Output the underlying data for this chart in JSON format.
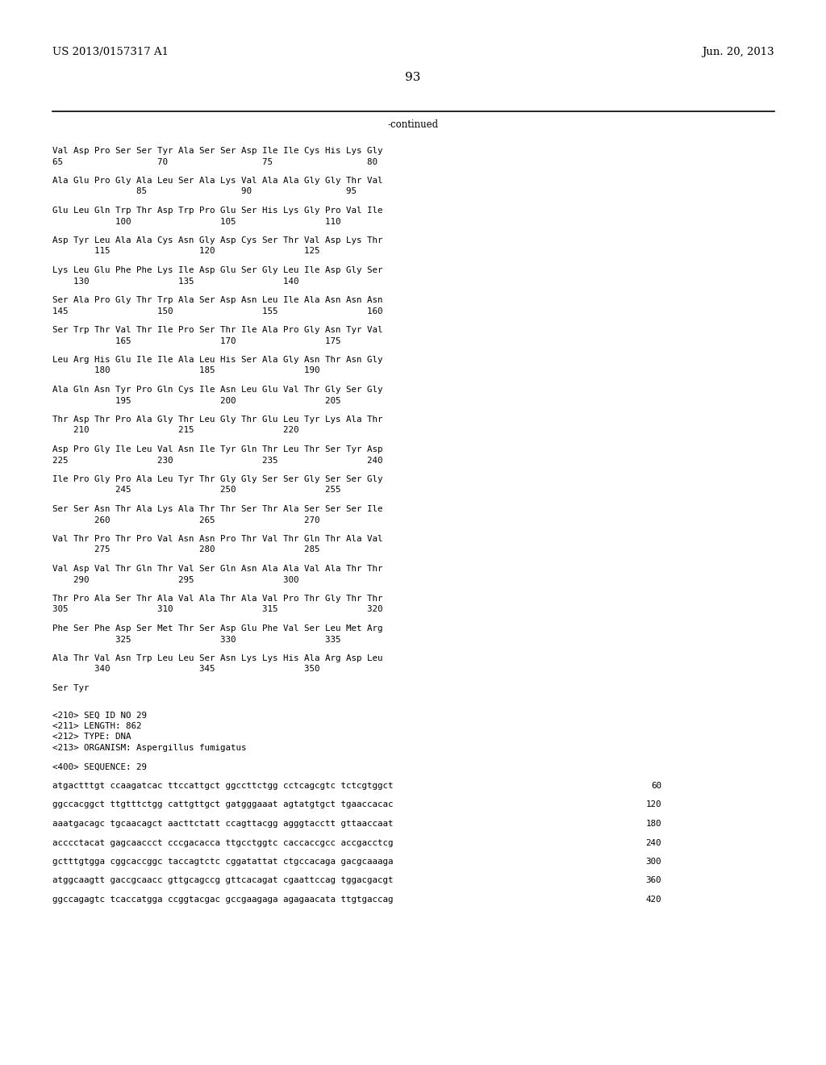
{
  "patent_number": "US 2013/0157317 A1",
  "date": "Jun. 20, 2013",
  "page_number": "93",
  "continued_label": "-continued",
  "bg_color": "#ffffff",
  "text_color": "#000000",
  "seq_lines": [
    "Val Asp Pro Ser Ser Tyr Ala Ser Ser Asp Ile Ile Cys His Lys Gly",
    "65                  70                  75                  80",
    "",
    "Ala Glu Pro Gly Ala Leu Ser Ala Lys Val Ala Ala Gly Gly Thr Val",
    "                85                  90                  95",
    "",
    "Glu Leu Gln Trp Thr Asp Trp Pro Glu Ser His Lys Gly Pro Val Ile",
    "            100                 105                 110",
    "",
    "Asp Tyr Leu Ala Ala Cys Asn Gly Asp Cys Ser Thr Val Asp Lys Thr",
    "        115                 120                 125",
    "",
    "Lys Leu Glu Phe Phe Lys Ile Asp Glu Ser Gly Leu Ile Asp Gly Ser",
    "    130                 135                 140",
    "",
    "Ser Ala Pro Gly Thr Trp Ala Ser Asp Asn Leu Ile Ala Asn Asn Asn",
    "145                 150                 155                 160",
    "",
    "Ser Trp Thr Val Thr Ile Pro Ser Thr Ile Ala Pro Gly Asn Tyr Val",
    "            165                 170                 175",
    "",
    "Leu Arg His Glu Ile Ile Ala Leu His Ser Ala Gly Asn Thr Asn Gly",
    "        180                 185                 190",
    "",
    "Ala Gln Asn Tyr Pro Gln Cys Ile Asn Leu Glu Val Thr Gly Ser Gly",
    "            195                 200                 205",
    "",
    "Thr Asp Thr Pro Ala Gly Thr Leu Gly Thr Glu Leu Tyr Lys Ala Thr",
    "    210                 215                 220",
    "",
    "Asp Pro Gly Ile Leu Val Asn Ile Tyr Gln Thr Leu Thr Ser Tyr Asp",
    "225                 230                 235                 240",
    "",
    "Ile Pro Gly Pro Ala Leu Tyr Thr Gly Gly Ser Ser Gly Ser Ser Gly",
    "            245                 250                 255",
    "",
    "Ser Ser Asn Thr Ala Lys Ala Thr Thr Ser Thr Ala Ser Ser Ser Ile",
    "        260                 265                 270",
    "",
    "Val Thr Pro Thr Pro Val Asn Asn Pro Thr Val Thr Gln Thr Ala Val",
    "        275                 280                 285",
    "",
    "Val Asp Val Thr Gln Thr Val Ser Gln Asn Ala Ala Val Ala Thr Thr",
    "    290                 295                 300",
    "",
    "Thr Pro Ala Ser Thr Ala Val Ala Thr Ala Val Pro Thr Gly Thr Thr",
    "305                 310                 315                 320",
    "",
    "Phe Ser Phe Asp Ser Met Thr Ser Asp Glu Phe Val Ser Leu Met Arg",
    "            325                 330                 335",
    "",
    "Ala Thr Val Asn Trp Leu Leu Ser Asn Lys Lys His Ala Arg Asp Leu",
    "        340                 345                 350",
    "",
    "Ser Tyr"
  ],
  "meta_lines": [
    "<210> SEQ ID NO 29",
    "<211> LENGTH: 862",
    "<212> TYPE: DNA",
    "<213> ORGANISM: Aspergillus fumigatus"
  ],
  "seq400_label": "<400> SEQUENCE: 29",
  "dna_lines": [
    [
      "atgactttgt ccaagatcac ttccattgct ggccttctgg cctcagcgtc tctcgtggct",
      "60"
    ],
    [
      "ggccacggct ttgtttctgg cattgttgct gatgggaaat agtatgtgct tgaaccacac",
      "120"
    ],
    [
      "aaatgacagc tgcaacagct aacttctatt ccagttacgg agggtacctt gttaaccaat",
      "180"
    ],
    [
      "acccctacat gagcaaccct cccgacacca ttgcctggtc caccaccgcc accgacctcg",
      "240"
    ],
    [
      "gctttgtgga cggcaccggc taccagtctc cggatattat ctgccacaga gacgcaaaga",
      "300"
    ],
    [
      "atggcaagtt gaccgcaacc gttgcagccg gttcacagat cgaattccag tggacgacgt",
      "360"
    ],
    [
      "ggccagagtc tcaccatgga ccggtacgac gccgaagaga agagaacata ttgtgaccag",
      "420"
    ]
  ]
}
